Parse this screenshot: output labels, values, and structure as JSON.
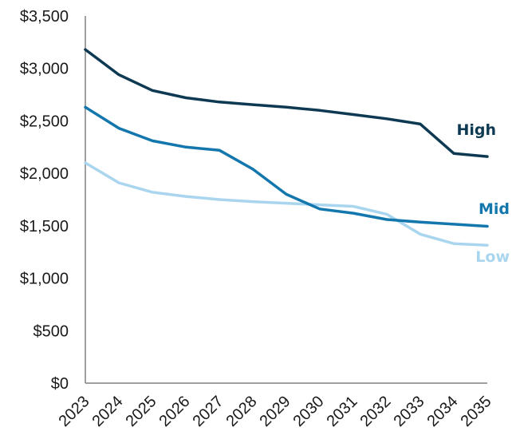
{
  "chart_data": {
    "type": "line",
    "title": "",
    "xlabel": "",
    "ylabel": "",
    "categories": [
      "2023",
      "2024",
      "2025",
      "2026",
      "2027",
      "2028",
      "2029",
      "2030",
      "2031",
      "2032",
      "2033",
      "2034",
      "2035"
    ],
    "ylim": [
      0,
      3500
    ],
    "yticks": [
      0,
      500,
      1000,
      1500,
      2000,
      2500,
      3000,
      3500
    ],
    "ytick_labels": [
      "$0",
      "$500",
      "$1,000",
      "$1,500",
      "$2,000",
      "$2,500",
      "$3,000",
      "$3,500"
    ],
    "grid": false,
    "legend": "inline labels at right end of lines",
    "series": [
      {
        "name": "High",
        "color": "#0d3a52",
        "values": [
          3180,
          2940,
          2790,
          2720,
          2680,
          2655,
          2630,
          2600,
          2560,
          2520,
          2470,
          2190,
          2160
        ]
      },
      {
        "name": "Mid",
        "color": "#1377ad",
        "values": [
          2630,
          2430,
          2310,
          2250,
          2220,
          2040,
          1800,
          1660,
          1620,
          1560,
          1535,
          1515,
          1495
        ]
      },
      {
        "name": "Low",
        "color": "#a9d6ee",
        "values": [
          2100,
          1910,
          1820,
          1780,
          1750,
          1730,
          1715,
          1700,
          1685,
          1610,
          1420,
          1330,
          1315
        ]
      }
    ]
  }
}
